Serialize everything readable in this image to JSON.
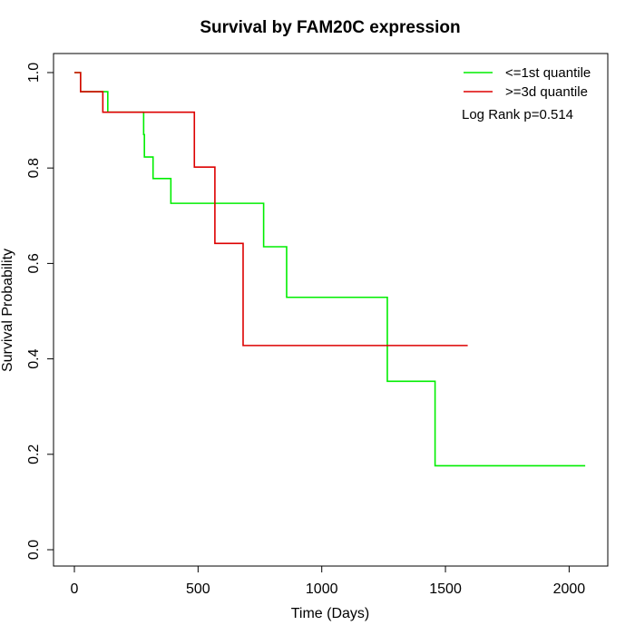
{
  "chart_data": {
    "type": "line",
    "title": "Survival by FAM20C expression",
    "xlabel": "Time (Days)",
    "ylabel": "Survival Probability",
    "xlim": [
      0,
      2100
    ],
    "ylim": [
      0,
      1.0
    ],
    "x_ticks": [
      0,
      500,
      1000,
      1500,
      2000
    ],
    "y_ticks": [
      0.0,
      0.2,
      0.4,
      0.6,
      0.8,
      1.0
    ],
    "x_tick_labels": [
      "0",
      "500",
      "1000",
      "1500",
      "2000"
    ],
    "y_tick_labels": [
      "0.0",
      "0.2",
      "0.4",
      "0.6",
      "0.8",
      "1.0"
    ],
    "legend_position": "top-right",
    "annotation": "Log Rank p=0.514",
    "series": [
      {
        "name": "<=1st quantile",
        "color": "#00ee00",
        "step_points": [
          [
            0,
            1.0
          ],
          [
            25,
            0.96
          ],
          [
            135,
            0.917
          ],
          [
            280,
            0.87
          ],
          [
            283,
            0.823
          ],
          [
            318,
            0.778
          ],
          [
            390,
            0.726
          ],
          [
            765,
            0.635
          ],
          [
            858,
            0.529
          ],
          [
            1265,
            0.353
          ],
          [
            1458,
            0.176
          ],
          [
            2065,
            0.176
          ]
        ]
      },
      {
        "name": ">=3d quantile",
        "color": "#dd0000",
        "step_points": [
          [
            0,
            1.0
          ],
          [
            25,
            0.96
          ],
          [
            115,
            0.917
          ],
          [
            485,
            0.802
          ],
          [
            568,
            0.642
          ],
          [
            682,
            0.428
          ],
          [
            1590,
            0.428
          ]
        ]
      }
    ]
  }
}
